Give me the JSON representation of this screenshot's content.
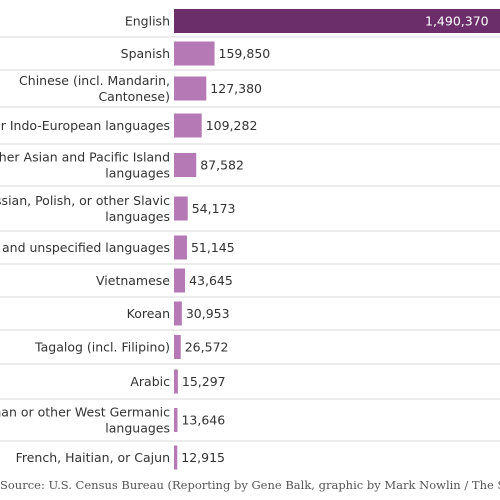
{
  "chart_data": {
    "type": "bar",
    "orientation": "horizontal",
    "categories": [
      "English",
      "Spanish",
      "Chinese (incl. Mandarin, Cantonese)",
      "Other Indo-European languages",
      "Other Asian and Pacific Island languages",
      "Russian, Polish, or other Slavic languages",
      "Other and unspecified languages",
      "Vietnamese",
      "Korean",
      "Tagalog (incl. Filipino)",
      "Arabic",
      "German or other West Germanic languages",
      "French, Haitian, or Cajun"
    ],
    "category_lines": [
      [
        "English"
      ],
      [
        "Spanish"
      ],
      [
        "Chinese (incl. Mandarin,",
        "Cantonese)"
      ],
      [
        "Other Indo-European languages"
      ],
      [
        "Other Asian and Pacific Island",
        "languages"
      ],
      [
        "Russian, Polish, or other Slavic",
        "languages"
      ],
      [
        "Other and unspecified languages"
      ],
      [
        "Vietnamese"
      ],
      [
        "Korean"
      ],
      [
        "Tagalog (incl. Filipino)"
      ],
      [
        "Arabic"
      ],
      [
        "German or other West Germanic",
        "languages"
      ],
      [
        "French, Haitian, or Cajun"
      ]
    ],
    "values": [
      1490370,
      159850,
      127380,
      109282,
      87582,
      54173,
      51145,
      43645,
      30953,
      26572,
      15297,
      13646,
      12915
    ],
    "value_labels": [
      "1,490,370",
      "159,850",
      "127,380",
      "109,282",
      "87,582",
      "54,173",
      "51,145",
      "43,645",
      "30,953",
      "26,572",
      "15,297",
      "13,646",
      "12,915"
    ],
    "xlim": [
      0,
      1490370
    ],
    "grid": false,
    "colors": {
      "highlight": "#6b2e6b",
      "bar": "#b57ab6",
      "divider": "#d9d9d9"
    }
  },
  "source_text": "Source: U.S. Census Bureau (Reporting by Gene Balk, graphic by Mark Nowlin / The Seattle Times)"
}
